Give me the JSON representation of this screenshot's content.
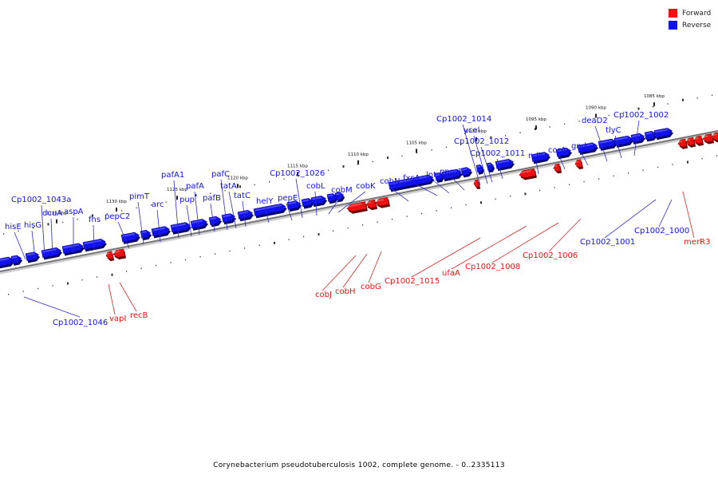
{
  "caption": "Corynebacterium pseudotuberculosis 1002, complete genome. - 0..2335113",
  "legend": [
    {
      "label": "Forward",
      "color": "#ee1111"
    },
    {
      "label": "Reverse",
      "color": "#1111ee"
    }
  ],
  "colors": {
    "forward": "#ee1111",
    "reverse": "#1111ee",
    "backbone": "#777777"
  },
  "ticks": [
    "1135 kbp",
    "1130 kbp",
    "1125 kbp",
    "1120 kbp",
    "1115 kbp",
    "1110 kbp",
    "1105 kbp",
    "1100 kbp",
    "1095 kbp",
    "1090 kbp",
    "1085 kbp"
  ],
  "genes": [
    {
      "name": "hisE",
      "strand": "reverse"
    },
    {
      "name": "hisG",
      "strand": "reverse"
    },
    {
      "name": "Cp1002_1043a",
      "strand": "reverse"
    },
    {
      "name": "dcuA",
      "strand": "reverse"
    },
    {
      "name": "aspA",
      "strand": "reverse"
    },
    {
      "name": "fhs",
      "strand": "reverse"
    },
    {
      "name": "pepC2",
      "strand": "reverse"
    },
    {
      "name": "pimT",
      "strand": "reverse"
    },
    {
      "name": "arc",
      "strand": "reverse"
    },
    {
      "name": "pafA1",
      "strand": "reverse"
    },
    {
      "name": "pup",
      "strand": "reverse"
    },
    {
      "name": "pafA",
      "strand": "reverse"
    },
    {
      "name": "pafB",
      "strand": "reverse"
    },
    {
      "name": "pafC",
      "strand": "reverse"
    },
    {
      "name": "tatA",
      "strand": "reverse"
    },
    {
      "name": "tatC",
      "strand": "reverse"
    },
    {
      "name": "helY",
      "strand": "reverse"
    },
    {
      "name": "Cp1002_1026",
      "strand": "reverse"
    },
    {
      "name": "pepE",
      "strand": "reverse"
    },
    {
      "name": "cobL",
      "strand": "reverse"
    },
    {
      "name": "cobM",
      "strand": "reverse"
    },
    {
      "name": "cobK",
      "strand": "reverse"
    },
    {
      "name": "cobN",
      "strand": "reverse"
    },
    {
      "name": "fxsA",
      "strand": "reverse"
    },
    {
      "name": "lnt",
      "strand": "reverse"
    },
    {
      "name": "ppm1",
      "strand": "reverse"
    },
    {
      "name": "Cp1002_1014",
      "strand": "reverse"
    },
    {
      "name": "ycel",
      "strand": "reverse"
    },
    {
      "name": "Cp1002_1012",
      "strand": "reverse"
    },
    {
      "name": "Cp1002_1011",
      "strand": "reverse"
    },
    {
      "name": "ndh",
      "strand": "reverse"
    },
    {
      "name": "corA",
      "strand": "reverse"
    },
    {
      "name": "gnd",
      "strand": "reverse"
    },
    {
      "name": "deaD2",
      "strand": "reverse"
    },
    {
      "name": "tlyC",
      "strand": "reverse"
    },
    {
      "name": "Cp1002_1002",
      "strand": "reverse"
    },
    {
      "name": "Cp1002_1046",
      "strand": "reverse"
    },
    {
      "name": "Cp1002_1001",
      "strand": "reverse"
    },
    {
      "name": "Cp1002_1000",
      "strand": "reverse"
    },
    {
      "name": "vapI",
      "strand": "forward"
    },
    {
      "name": "recB",
      "strand": "forward"
    },
    {
      "name": "cobJ",
      "strand": "forward"
    },
    {
      "name": "cobH",
      "strand": "forward"
    },
    {
      "name": "cobG",
      "strand": "forward"
    },
    {
      "name": "Cp1002_1015",
      "strand": "forward"
    },
    {
      "name": "ufaA",
      "strand": "forward"
    },
    {
      "name": "Cp1002_1008",
      "strand": "forward"
    },
    {
      "name": "Cp1002_1006",
      "strand": "forward"
    },
    {
      "name": "merR3",
      "strand": "forward"
    }
  ]
}
